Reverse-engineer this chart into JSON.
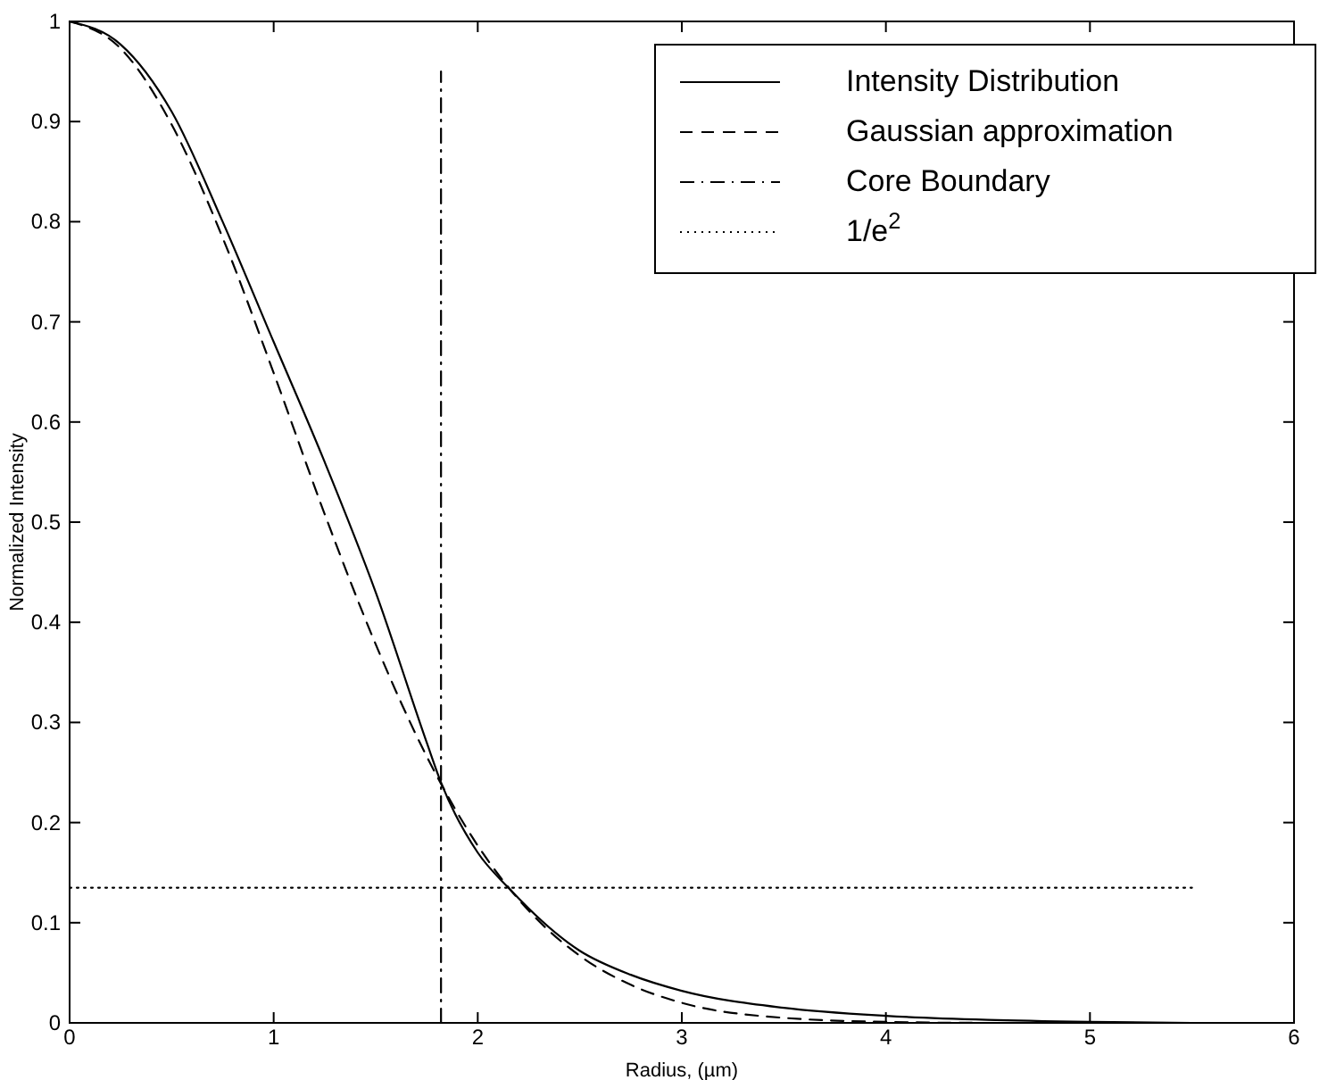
{
  "chart_data": {
    "type": "line",
    "xlabel": "Radius, (µm)",
    "ylabel": "Normalized Intensity",
    "xlim": [
      0,
      6
    ],
    "xticks": [
      0,
      1,
      2,
      3,
      4,
      5,
      6
    ],
    "ylim": [
      0,
      1
    ],
    "yticks": [
      0,
      0.1,
      0.2,
      0.3,
      0.4,
      0.5,
      0.6,
      0.7,
      0.8,
      0.9,
      1
    ],
    "grid": false,
    "legend": "top right",
    "marker": "none",
    "series": [
      {
        "name": "Intensity Distribution",
        "color": "#000000",
        "line_style": "solid",
        "x": [
          0,
          0.25,
          0.5,
          0.75,
          1,
          1.25,
          1.5,
          1.75,
          1.82,
          2,
          2.15,
          2.5,
          2.75,
          3,
          3.5,
          4,
          4.5,
          5,
          5.5
        ],
        "values": [
          1,
          0.977,
          0.91,
          0.8,
          0.68,
          0.56,
          0.43,
          0.28,
          0.24,
          0.17,
          0.135,
          0.072,
          0.048,
          0.032,
          0.015,
          0.007,
          0.003,
          0.001,
          0
        ]
      },
      {
        "name": "Gaussian approximation",
        "color": "#000000",
        "line_style": "dashed",
        "x": [
          0,
          0.25,
          0.5,
          0.75,
          1,
          1.25,
          1.5,
          1.75,
          2,
          2.25,
          2.5,
          2.75,
          3,
          3.5,
          4,
          4.5,
          5,
          5.5
        ],
        "values": [
          1,
          0.973,
          0.897,
          0.784,
          0.649,
          0.508,
          0.378,
          0.266,
          0.177,
          0.112,
          0.067,
          0.038,
          0.02,
          0.005,
          0.001,
          0,
          0,
          0
        ]
      },
      {
        "name": "Core Boundary",
        "color": "#000000",
        "line_style": "dashdot",
        "x": [
          1.82,
          1.82
        ],
        "values": [
          0,
          0.95
        ]
      },
      {
        "name": "1/e$^{2}$",
        "color": "#000000",
        "line_style": "dotted",
        "x": [
          0,
          5.5
        ],
        "values": [
          0.135,
          0.135
        ]
      }
    ]
  }
}
